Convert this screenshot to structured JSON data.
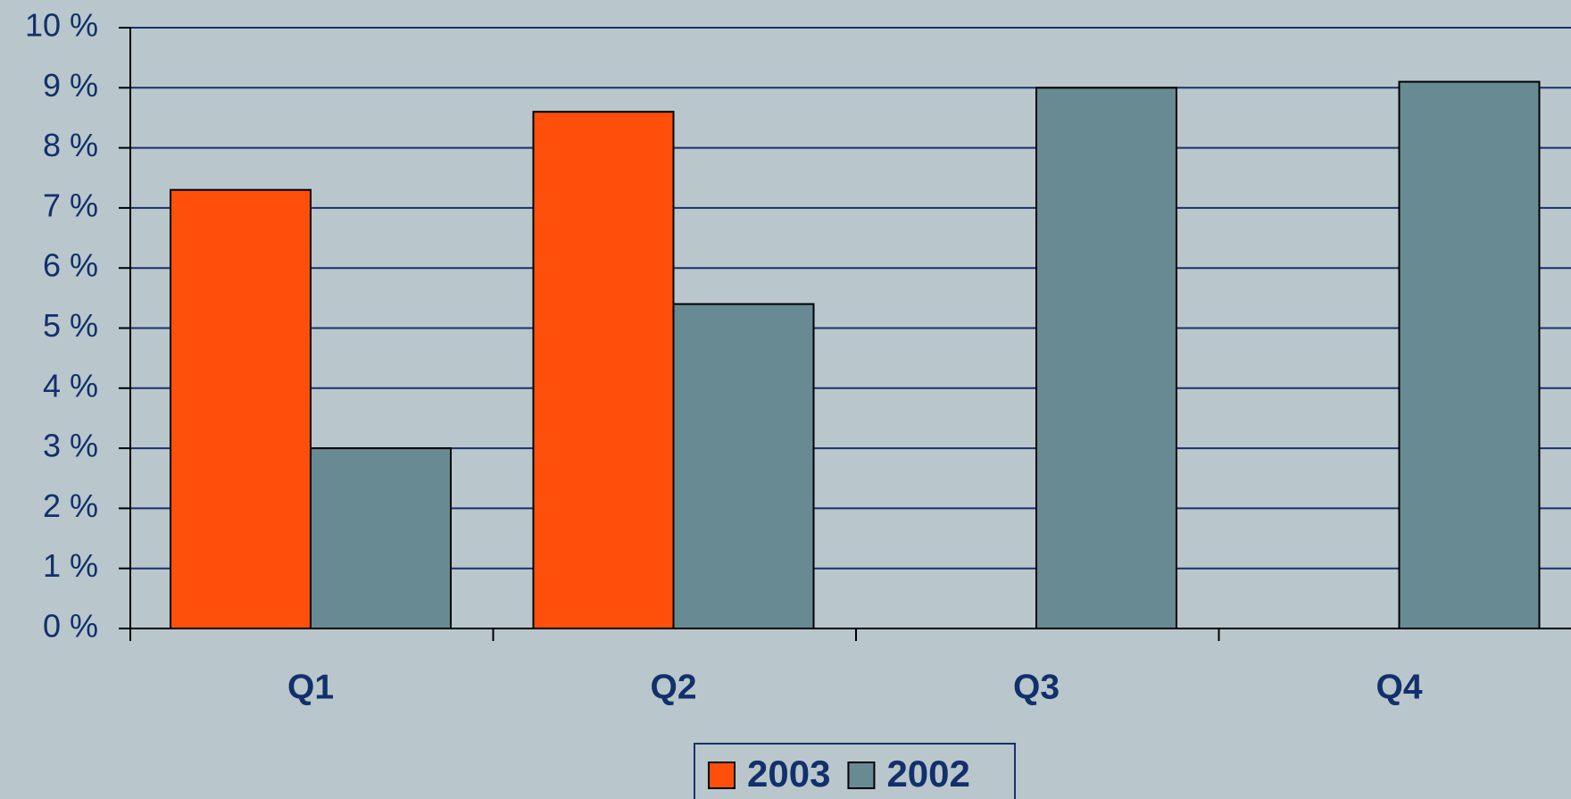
{
  "chart_data": {
    "type": "bar",
    "categories": [
      "Q1",
      "Q2",
      "Q3",
      "Q4"
    ],
    "series": [
      {
        "name": "2003",
        "color": "#ff4f0a",
        "values": [
          7.3,
          8.6,
          null,
          null
        ]
      },
      {
        "name": "2002",
        "color": "#688a93",
        "values": [
          3.0,
          5.4,
          9.0,
          9.1
        ]
      }
    ],
    "ylim": [
      0,
      10
    ],
    "yticks": [
      {
        "value": 0,
        "label": "0 %"
      },
      {
        "value": 1,
        "label": "1 %"
      },
      {
        "value": 2,
        "label": "2 %"
      },
      {
        "value": 3,
        "label": "3 %"
      },
      {
        "value": 4,
        "label": "4 %"
      },
      {
        "value": 5,
        "label": "5 %"
      },
      {
        "value": 6,
        "label": "6 %"
      },
      {
        "value": 7,
        "label": "7 %"
      },
      {
        "value": 8,
        "label": "8 %"
      },
      {
        "value": 9,
        "label": "9 %"
      },
      {
        "value": 10,
        "label": "10 %"
      }
    ],
    "grid": true,
    "legend": "bottom"
  }
}
